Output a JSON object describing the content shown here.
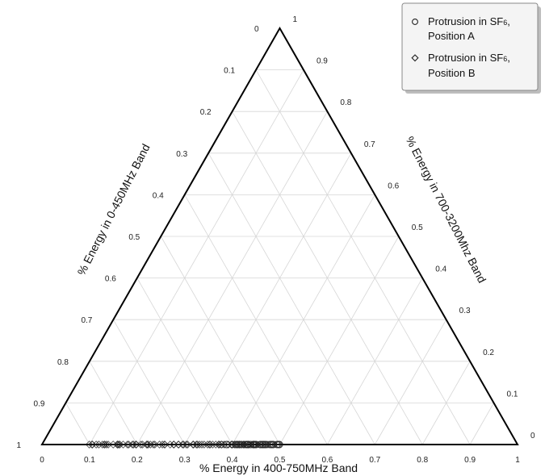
{
  "chart_data": {
    "type": "scatter",
    "subtype": "ternary",
    "grid": true,
    "legend_position": "top-right",
    "axes": {
      "bottom": {
        "label": "% Energy in 400-750MHz Band",
        "ticks": [
          "0",
          "0.1",
          "0.2",
          "0.3",
          "0.4",
          "0.5",
          "0.6",
          "0.7",
          "0.8",
          "0.9",
          "1"
        ]
      },
      "left": {
        "label": "% Energy in 0-450MHz Band",
        "ticks": [
          "0",
          "0.1",
          "0.2",
          "0.3",
          "0.4",
          "0.5",
          "0.6",
          "0.7",
          "0.8",
          "0.9",
          "1"
        ]
      },
      "right": {
        "label": "% Energy in  700-3200Mhz Band",
        "ticks": [
          "0",
          "0.1",
          "0.2",
          "0.3",
          "0.4",
          "0.5",
          "0.6",
          "0.7",
          "0.8",
          "0.9",
          "1"
        ]
      },
      "range": [
        0,
        1
      ]
    },
    "series": [
      {
        "name_main": "Protrusion in SF",
        "name_sub": "6",
        "name_suffix": ",",
        "name_line2": "Position A",
        "marker": "circle",
        "color": "#222222",
        "clusters": [
          {
            "bottom_from": 0.43,
            "bottom_to": 0.5,
            "left_from": 0.89,
            "left_to": 0.86,
            "n": 34
          },
          {
            "bottom_from": 0.38,
            "bottom_to": 0.45,
            "left_from": 0.985,
            "left_to": 0.96,
            "n": 14
          }
        ]
      },
      {
        "name_main": "Protrusion in SF",
        "name_sub": "6",
        "name_suffix": ",",
        "name_line2": "Position B",
        "marker": "diamond",
        "color": "#222222",
        "clusters": [
          {
            "bottom_from": 0.1,
            "bottom_to": 0.44,
            "left_from": 1.0,
            "left_to": 0.96,
            "n": 70
          }
        ]
      }
    ]
  }
}
